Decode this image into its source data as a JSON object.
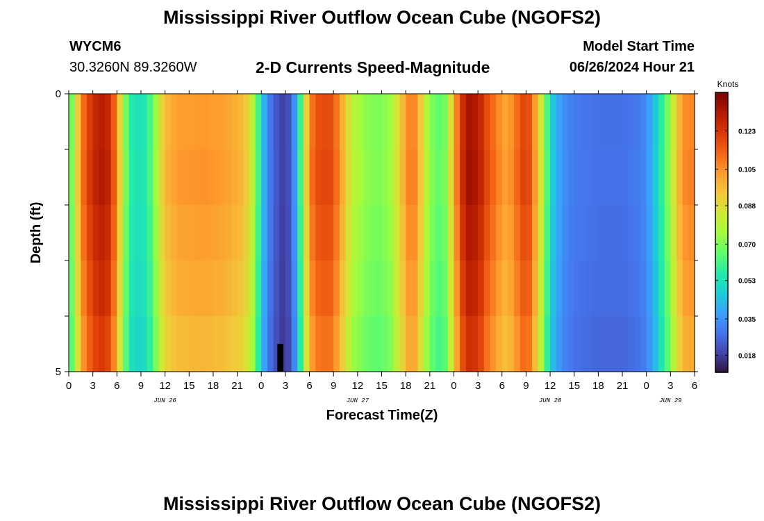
{
  "title": "Mississippi River Outflow Ocean Cube (NGOFS2)",
  "station": {
    "id": "WYCM6",
    "coords": "30.3260N  89.3260W"
  },
  "subtitle": "2-D Currents Speed-Magnitude",
  "model_start": {
    "label": "Model Start Time",
    "value": "06/26/2024 Hour 21"
  },
  "bottom_title": "Mississippi River Outflow Ocean Cube (NGOFS2)",
  "chart_data": {
    "type": "heatmap",
    "title": "2-D Currents Speed-Magnitude",
    "xlabel": "Forecast Time(Z)",
    "ylabel": "Depth (ft)",
    "ylim": [
      0,
      5
    ],
    "xlim_hours": [
      0,
      78
    ],
    "x_tick_labels": [
      "0",
      "3",
      "6",
      "9",
      "12",
      "15",
      "18",
      "21",
      "0",
      "3",
      "6",
      "9",
      "12",
      "15",
      "18",
      "21",
      "0",
      "3",
      "6",
      "9",
      "12",
      "15",
      "18",
      "21",
      "0",
      "3",
      "6"
    ],
    "y_tick_labels": [
      "0",
      "5"
    ],
    "date_labels": [
      {
        "text": "JUN 26",
        "hour": 12
      },
      {
        "text": "JUN 27",
        "hour": 36
      },
      {
        "text": "JUN 28",
        "hour": 60
      },
      {
        "text": "JUN 29",
        "hour": 75
      }
    ],
    "depth_rows": 5,
    "hour_step": 0.75,
    "colorbar": {
      "label": "Knots",
      "min": 0.01,
      "max": 0.141,
      "ticks": [
        "0.123",
        "0.105",
        "0.088",
        "0.070",
        "0.053",
        "0.035",
        "0.018"
      ],
      "tick_values": [
        0.123,
        0.105,
        0.088,
        0.07,
        0.053,
        0.035,
        0.018
      ],
      "colors": [
        "#30123b",
        "#4145ab",
        "#4675ed",
        "#39a2fc",
        "#1bcfd4",
        "#24eca6",
        "#61fc6c",
        "#a4fc3b",
        "#d1e834",
        "#f3c63a",
        "#fe9b2d",
        "#f36315",
        "#d93806",
        "#b11901",
        "#7a0402"
      ]
    },
    "speed_profile": [
      {
        "hour": 0,
        "value": 0.06
      },
      {
        "hour": 0.75,
        "value": 0.08
      },
      {
        "hour": 1.5,
        "value": 0.108
      },
      {
        "hour": 2.25,
        "value": 0.118
      },
      {
        "hour": 3,
        "value": 0.127
      },
      {
        "hour": 4,
        "value": 0.132
      },
      {
        "hour": 5,
        "value": 0.128
      },
      {
        "hour": 5.8,
        "value": 0.112
      },
      {
        "hour": 6.6,
        "value": 0.085
      },
      {
        "hour": 7.5,
        "value": 0.058
      },
      {
        "hour": 9,
        "value": 0.052
      },
      {
        "hour": 10.5,
        "value": 0.066
      },
      {
        "hour": 11.5,
        "value": 0.09
      },
      {
        "hour": 12.5,
        "value": 0.1
      },
      {
        "hour": 14,
        "value": 0.104
      },
      {
        "hour": 17,
        "value": 0.105
      },
      {
        "hour": 19.5,
        "value": 0.103
      },
      {
        "hour": 21.5,
        "value": 0.098
      },
      {
        "hour": 22.5,
        "value": 0.09
      },
      {
        "hour": 23.3,
        "value": 0.072
      },
      {
        "hour": 24,
        "value": 0.05
      },
      {
        "hour": 24.8,
        "value": 0.032
      },
      {
        "hour": 25.5,
        "value": 0.026
      },
      {
        "hour": 26.3,
        "value": 0.02
      },
      {
        "hour": 27,
        "value": 0.018
      },
      {
        "hour": 27.8,
        "value": 0.026
      },
      {
        "hour": 28.5,
        "value": 0.045
      },
      {
        "hour": 29.2,
        "value": 0.075
      },
      {
        "hour": 30,
        "value": 0.108
      },
      {
        "hour": 31,
        "value": 0.118
      },
      {
        "hour": 32.5,
        "value": 0.12
      },
      {
        "hour": 33.5,
        "value": 0.11
      },
      {
        "hour": 34.5,
        "value": 0.093
      },
      {
        "hour": 35.5,
        "value": 0.08
      },
      {
        "hour": 37,
        "value": 0.073
      },
      {
        "hour": 38.5,
        "value": 0.07
      },
      {
        "hour": 40,
        "value": 0.074
      },
      {
        "hour": 41,
        "value": 0.088
      },
      {
        "hour": 42,
        "value": 0.104
      },
      {
        "hour": 42.8,
        "value": 0.112
      },
      {
        "hour": 43.5,
        "value": 0.102
      },
      {
        "hour": 44.3,
        "value": 0.085
      },
      {
        "hour": 45,
        "value": 0.073
      },
      {
        "hour": 46,
        "value": 0.066
      },
      {
        "hour": 47,
        "value": 0.07
      },
      {
        "hour": 48,
        "value": 0.1
      },
      {
        "hour": 49,
        "value": 0.125
      },
      {
        "hour": 50,
        "value": 0.136
      },
      {
        "hour": 51.2,
        "value": 0.13
      },
      {
        "hour": 52.2,
        "value": 0.118
      },
      {
        "hour": 53.5,
        "value": 0.108
      },
      {
        "hour": 54.5,
        "value": 0.102
      },
      {
        "hour": 55.5,
        "value": 0.108
      },
      {
        "hour": 56.5,
        "value": 0.12
      },
      {
        "hour": 57.5,
        "value": 0.118
      },
      {
        "hour": 58.2,
        "value": 0.102
      },
      {
        "hour": 59,
        "value": 0.082
      },
      {
        "hour": 59.8,
        "value": 0.058
      },
      {
        "hour": 60.5,
        "value": 0.044
      },
      {
        "hour": 61.5,
        "value": 0.035
      },
      {
        "hour": 63,
        "value": 0.03
      },
      {
        "hour": 66,
        "value": 0.028
      },
      {
        "hour": 69,
        "value": 0.028
      },
      {
        "hour": 71,
        "value": 0.03
      },
      {
        "hour": 72,
        "value": 0.034
      },
      {
        "hour": 73,
        "value": 0.045
      },
      {
        "hour": 74,
        "value": 0.06
      },
      {
        "hour": 74.8,
        "value": 0.072
      },
      {
        "hour": 75.5,
        "value": 0.088
      },
      {
        "hour": 76.2,
        "value": 0.1
      },
      {
        "hour": 77,
        "value": 0.108
      },
      {
        "hour": 78,
        "value": 0.108
      }
    ],
    "depth_factors": [
      0.99,
      1.0,
      0.98,
      0.96,
      0.93
    ],
    "missing_cell": {
      "hour": 26,
      "depth": 4.5
    }
  }
}
